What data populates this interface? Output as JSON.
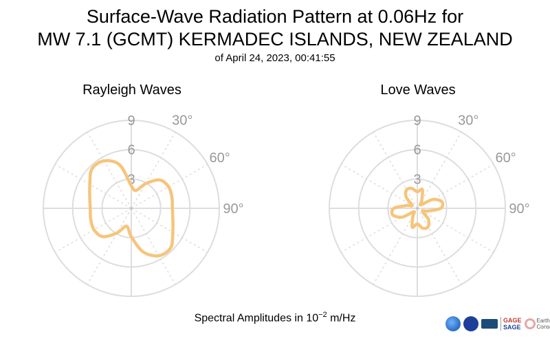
{
  "title": {
    "line1": "Surface-Wave Radiation Pattern at 0.06Hz for",
    "line2": "MW 7.1 (GCMT) KERMADEC ISLANDS, NEW ZEALAND",
    "subtitle": "of April 24, 2023, 00:41:55"
  },
  "caption": {
    "prefix": "Spectral Amplitudes in ",
    "base": "10",
    "exponent": "−2",
    "suffix": " m/Hz"
  },
  "logos": {
    "gage": "GAGE",
    "sage": "SAGE",
    "earthscope_line1": "EarthScope",
    "earthscope_line2": "Consortium"
  },
  "colors": {
    "curve": "#f7c47b",
    "grid": "#dddddd",
    "tick_text": "#999999"
  },
  "chart_data": [
    {
      "type": "polar-line",
      "title": "Rayleigh Waves",
      "rmax": 9,
      "radial_ticks": [
        3,
        6,
        9
      ],
      "angular_tick_labels": [
        "30°",
        "60°",
        "90°"
      ],
      "angular_gridlines_deg": [
        0,
        30,
        60,
        90,
        120,
        150,
        180,
        210,
        240,
        270,
        300,
        330
      ],
      "direction": "clockwise",
      "zero_location": "top",
      "series": [
        {
          "theta_deg": [
            0,
            15,
            30,
            45,
            60,
            75,
            90,
            105,
            120,
            135,
            150,
            165,
            180,
            195,
            210,
            225,
            240,
            255,
            270,
            285,
            300,
            315,
            330,
            345
          ],
          "r": [
            2.3,
            1.9,
            2.9,
            4.1,
            4.4,
            4.3,
            4.2,
            4.4,
            4.9,
            5.7,
            5.6,
            4.6,
            2.9,
            1.9,
            2.9,
            4.1,
            4.4,
            4.3,
            4.2,
            4.4,
            4.9,
            5.7,
            5.6,
            4.6
          ]
        }
      ]
    },
    {
      "type": "polar-line",
      "title": "Love Waves",
      "rmax": 9,
      "radial_ticks": [
        3,
        6,
        9
      ],
      "angular_tick_labels": [
        "30°",
        "60°",
        "90°"
      ],
      "angular_gridlines_deg": [
        0,
        30,
        60,
        90,
        120,
        150,
        180,
        210,
        240,
        270,
        300,
        330
      ],
      "direction": "clockwise",
      "zero_location": "top",
      "series": [
        {
          "theta_deg": [
            0,
            15,
            30,
            45,
            60,
            75,
            90,
            105,
            120,
            135,
            150,
            165,
            180,
            195,
            210,
            225,
            240,
            255,
            270,
            285,
            300,
            315,
            330,
            345
          ],
          "r": [
            1.7,
            2.0,
            0.9,
            0.5,
            1.8,
            2.6,
            2.4,
            1.1,
            0.6,
            1.6,
            2.2,
            2.1,
            1.6,
            2.0,
            0.9,
            0.5,
            1.8,
            2.6,
            2.4,
            1.1,
            0.6,
            1.6,
            2.2,
            2.1
          ]
        }
      ]
    }
  ]
}
